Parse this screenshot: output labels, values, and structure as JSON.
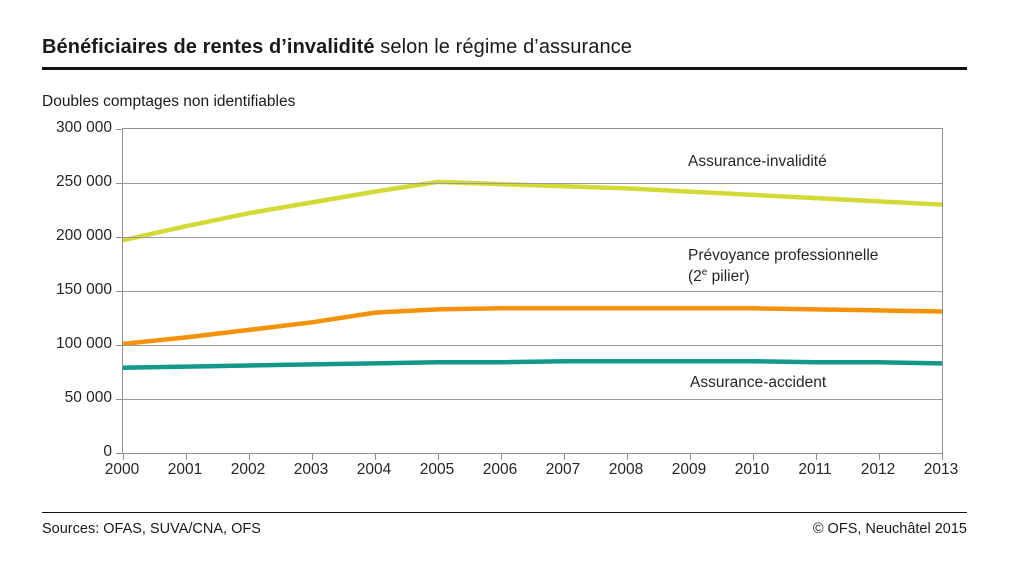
{
  "title": {
    "bold": "Bénéficiaires de rentes d’invalidité",
    "regular": " selon le régime d’assurance"
  },
  "subtitle": "Doubles comptages non identifiables",
  "chart_data": {
    "type": "line",
    "x": [
      2000,
      2001,
      2002,
      2003,
      2004,
      2005,
      2006,
      2007,
      2008,
      2009,
      2010,
      2011,
      2012,
      2013
    ],
    "series": [
      {
        "name": "Assurance-invalidité",
        "color": "#d3d935",
        "values": [
          197000,
          210000,
          222000,
          232000,
          242000,
          251000,
          249000,
          247000,
          245000,
          242000,
          239000,
          236000,
          233000,
          230000
        ]
      },
      {
        "name": "Prévoyance professionnelle (2e pilier)",
        "color": "#f39207",
        "values": [
          101000,
          107000,
          114000,
          121000,
          130000,
          133000,
          134000,
          134000,
          134000,
          134000,
          134000,
          133000,
          132000,
          131000
        ]
      },
      {
        "name": "Assurance-accident",
        "color": "#12998a",
        "values": [
          79000,
          80000,
          81000,
          82000,
          83000,
          84000,
          84000,
          85000,
          85000,
          85000,
          85000,
          84000,
          84000,
          83000
        ]
      }
    ],
    "ylim": [
      0,
      300000
    ],
    "ytick_step": 50000,
    "ytick_labels": [
      "0",
      "50 000",
      "100 000",
      "150 000",
      "200 000",
      "250 000",
      "300 000"
    ],
    "grid": true,
    "legend_position": "inline-annotations"
  },
  "annotations": {
    "ai_label": "Assurance-invalidité",
    "pp_line1": "Prévoyance professionnelle",
    "pp_pre": "(2",
    "pp_sup": "e",
    "pp_post": " pilier)",
    "aa_label": "Assurance-accident"
  },
  "footer": {
    "sources": "Sources: OFAS, SUVA/CNA, OFS",
    "copyright": "© OFS, Neuchâtel 2015"
  },
  "colors": {
    "grid": "#9b9b9b",
    "axis_border": "#8f8f8f",
    "rule": "#111111",
    "text": "#262626"
  }
}
